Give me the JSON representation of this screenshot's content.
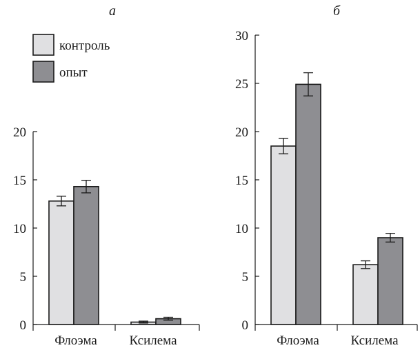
{
  "chart_data": [
    {
      "type": "bar",
      "panel": "а",
      "categories": [
        "Флоэма",
        "Ксилема"
      ],
      "series": [
        {
          "name": "контроль",
          "values": [
            12.8,
            0.25
          ],
          "errors": [
            0.5,
            0.1
          ]
        },
        {
          "name": "опыт",
          "values": [
            14.3,
            0.6
          ],
          "errors": [
            0.65,
            0.15
          ]
        }
      ],
      "ylim": [
        0,
        20
      ],
      "yticks": [
        0,
        5,
        10,
        15,
        20
      ],
      "ytick_labels": [
        "0",
        "5",
        "10",
        "15",
        "20"
      ],
      "legend_position": "top-left",
      "grid": false
    },
    {
      "type": "bar",
      "panel": "б",
      "categories": [
        "Флоэма",
        "Ксилема"
      ],
      "series": [
        {
          "name": "контроль",
          "values": [
            18.5,
            6.2
          ],
          "errors": [
            0.8,
            0.4
          ]
        },
        {
          "name": "опыт",
          "values": [
            24.9,
            9.0
          ],
          "errors": [
            1.2,
            0.45
          ]
        }
      ],
      "ylim": [
        0,
        30
      ],
      "yticks": [
        0,
        5,
        10,
        15,
        20,
        25,
        30
      ],
      "ytick_labels": [
        "0",
        "5",
        "10",
        "15",
        "20",
        "25",
        "30"
      ],
      "grid": false
    }
  ],
  "legend": [
    {
      "label": "контроль",
      "color": "#e0e0e2"
    },
    {
      "label": "опыт",
      "color": "#8e8e92"
    }
  ],
  "colors": {
    "control": "#e0e0e2",
    "experiment": "#8e8e92",
    "stroke": "#1a1a1a"
  }
}
